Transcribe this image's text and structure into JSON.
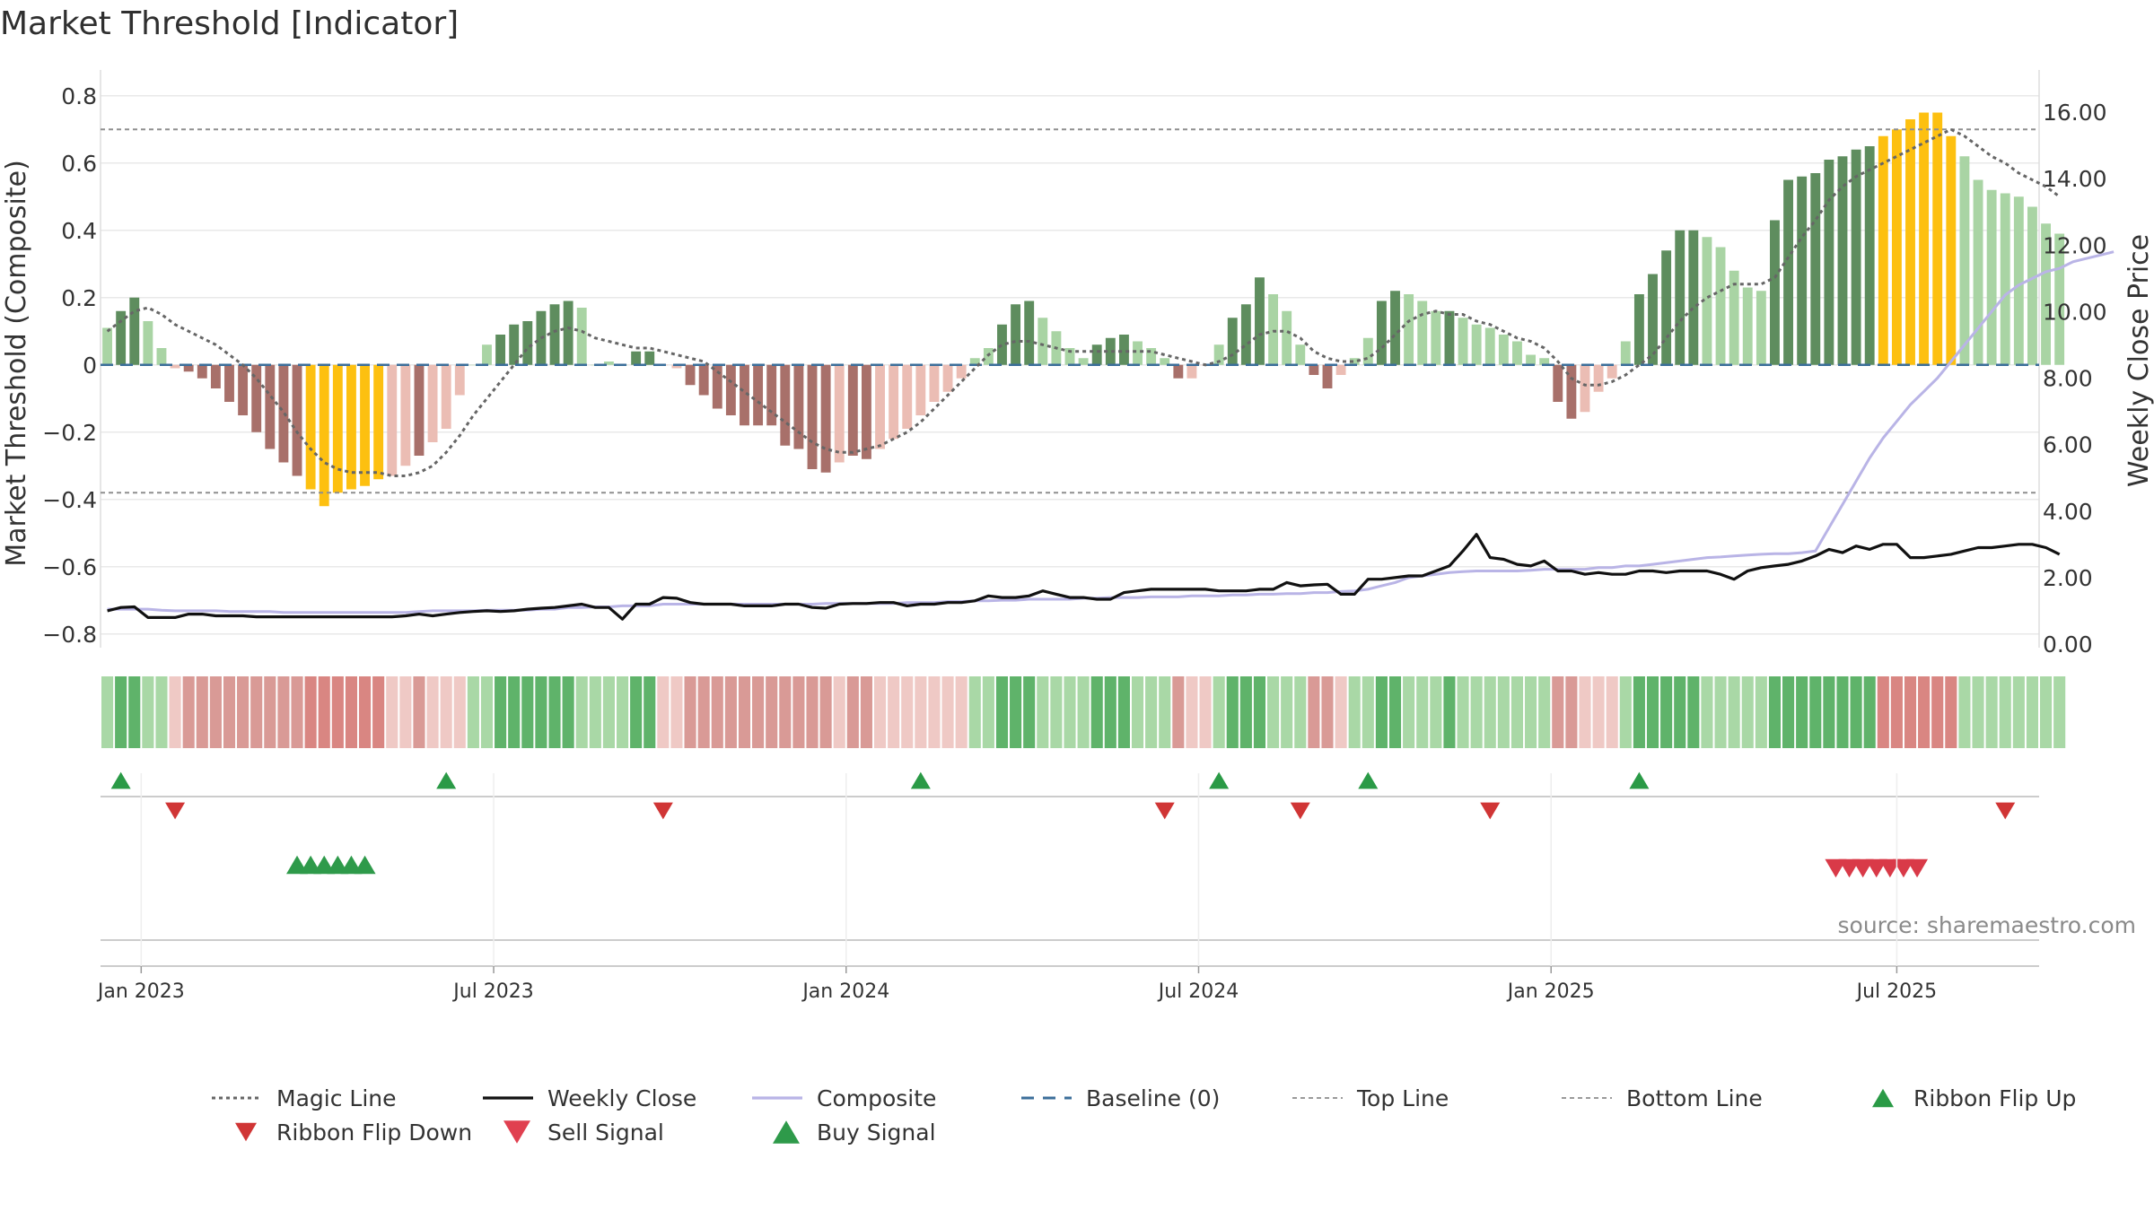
{
  "chart_data": {
    "type": "bar",
    "title": "Market Threshold [Indicator]",
    "ylabel_left": "Market Threshold (Composite)",
    "ylabel_right": "Weekly Close Price",
    "ylim_left": [
      -0.83,
      0.85
    ],
    "ylim_right": [
      0,
      17
    ],
    "yticks_left": [
      -0.8,
      -0.6,
      -0.4,
      -0.2,
      0,
      0.2,
      0.4,
      0.6,
      0.8
    ],
    "ytick_labels_left": [
      "−0.8",
      "−0.6",
      "−0.4",
      "−0.2",
      "0",
      "0.2",
      "0.4",
      "0.6",
      "0.8"
    ],
    "yticks_right": [
      0,
      2,
      4,
      6,
      8,
      10,
      12,
      14,
      16
    ],
    "ytick_labels_right": [
      "0.00",
      "2.00",
      "4.00",
      "6.00",
      "8.00",
      "10.00",
      "12.00",
      "14.00",
      "16.00"
    ],
    "x_ticks": [
      {
        "label": "Jan 2023",
        "week": 3
      },
      {
        "label": "Jul 2023",
        "week": 29
      },
      {
        "label": "Jan 2024",
        "week": 55
      },
      {
        "label": "Jul 2024",
        "week": 81
      },
      {
        "label": "Jan 2025",
        "week": 107
      },
      {
        "label": "Jul 2025",
        "week": 132.5
      }
    ],
    "weeks": 143,
    "top_line": 0.7,
    "bottom_line": -0.38,
    "composite_bars": [
      0.11,
      0.16,
      0.2,
      0.13,
      0.05,
      -0.01,
      -0.02,
      -0.04,
      -0.07,
      -0.11,
      -0.15,
      -0.2,
      -0.25,
      -0.29,
      -0.33,
      -0.37,
      -0.42,
      -0.38,
      -0.37,
      -0.36,
      -0.34,
      -0.33,
      -0.3,
      -0.27,
      -0.23,
      -0.19,
      -0.09,
      0.0,
      0.06,
      0.09,
      0.12,
      0.13,
      0.16,
      0.18,
      0.19,
      0.17,
      0.0,
      0.01,
      0.0,
      0.04,
      0.04,
      0.0,
      -0.01,
      -0.06,
      -0.09,
      -0.13,
      -0.15,
      -0.18,
      -0.18,
      -0.18,
      -0.24,
      -0.25,
      -0.31,
      -0.32,
      -0.29,
      -0.27,
      -0.28,
      -0.25,
      -0.22,
      -0.19,
      -0.15,
      -0.11,
      -0.08,
      -0.04,
      0.02,
      0.05,
      0.12,
      0.18,
      0.19,
      0.14,
      0.1,
      0.05,
      0.02,
      0.06,
      0.08,
      0.09,
      0.07,
      0.05,
      0.02,
      -0.04,
      -0.04,
      0.0,
      0.06,
      0.14,
      0.18,
      0.26,
      0.21,
      0.16,
      0.06,
      -0.03,
      -0.07,
      -0.03,
      0.02,
      0.08,
      0.19,
      0.22,
      0.21,
      0.19,
      0.16,
      0.16,
      0.14,
      0.12,
      0.11,
      0.09,
      0.07,
      0.03,
      0.02,
      -0.11,
      -0.16,
      -0.14,
      -0.08,
      -0.04,
      0.07,
      0.21,
      0.27,
      0.34,
      0.4,
      0.4,
      0.38,
      0.35,
      0.28,
      0.23,
      0.22,
      0.43,
      0.55,
      0.56,
      0.57,
      0.61,
      0.62,
      0.64,
      0.65,
      0.68,
      0.7,
      0.73,
      0.75,
      0.75,
      0.68,
      0.62,
      0.55,
      0.52,
      0.51,
      0.5,
      0.47,
      0.42,
      0.39
    ],
    "bar_categories": [
      "lg",
      "dg",
      "dg",
      "lg",
      "lg",
      "lr",
      "dr",
      "dr",
      "dr",
      "dr",
      "dr",
      "dr",
      "dr",
      "dr",
      "dr",
      "y",
      "y",
      "y",
      "y",
      "y",
      "y",
      "lr",
      "lr",
      "dr",
      "lr",
      "lr",
      "lr",
      "lg",
      "lg",
      "dg",
      "dg",
      "dg",
      "dg",
      "dg",
      "dg",
      "lg",
      "lg",
      "lg",
      "lg",
      "dg",
      "dg",
      "lr",
      "lr",
      "dr",
      "dr",
      "dr",
      "dr",
      "dr",
      "dr",
      "dr",
      "dr",
      "dr",
      "dr",
      "dr",
      "lr",
      "dr",
      "dr",
      "lr",
      "lr",
      "lr",
      "lr",
      "lr",
      "lr",
      "lr",
      "lg",
      "lg",
      "dg",
      "dg",
      "dg",
      "lg",
      "lg",
      "lg",
      "lg",
      "dg",
      "dg",
      "dg",
      "lg",
      "lg",
      "lg",
      "dr",
      "lr",
      "lr",
      "lg",
      "dg",
      "dg",
      "dg",
      "lg",
      "lg",
      "lg",
      "dr",
      "dr",
      "lr",
      "lg",
      "lg",
      "dg",
      "dg",
      "lg",
      "lg",
      "lg",
      "dg",
      "lg",
      "lg",
      "lg",
      "lg",
      "lg",
      "lg",
      "lg",
      "dr",
      "dr",
      "lr",
      "lr",
      "lr",
      "lg",
      "dg",
      "dg",
      "dg",
      "dg",
      "dg",
      "lg",
      "lg",
      "lg",
      "lg",
      "lg",
      "dg",
      "dg",
      "dg",
      "dg",
      "dg",
      "dg",
      "dg",
      "dg",
      "y",
      "y",
      "y",
      "y",
      "y",
      "y",
      "lg",
      "lg",
      "lg",
      "lg",
      "lg",
      "lg",
      "lg",
      "lg"
    ],
    "magic_line": [
      0.1,
      0.13,
      0.16,
      0.17,
      0.15,
      0.12,
      0.1,
      0.08,
      0.06,
      0.03,
      0.0,
      -0.04,
      -0.09,
      -0.14,
      -0.2,
      -0.25,
      -0.29,
      -0.31,
      -0.32,
      -0.32,
      -0.32,
      -0.33,
      -0.33,
      -0.32,
      -0.3,
      -0.26,
      -0.21,
      -0.15,
      -0.1,
      -0.05,
      0.0,
      0.05,
      0.08,
      0.1,
      0.11,
      0.1,
      0.08,
      0.07,
      0.06,
      0.05,
      0.05,
      0.04,
      0.03,
      0.02,
      0.01,
      -0.02,
      -0.05,
      -0.08,
      -0.11,
      -0.14,
      -0.17,
      -0.2,
      -0.23,
      -0.25,
      -0.26,
      -0.26,
      -0.25,
      -0.24,
      -0.22,
      -0.2,
      -0.17,
      -0.13,
      -0.09,
      -0.05,
      -0.01,
      0.03,
      0.06,
      0.07,
      0.07,
      0.06,
      0.05,
      0.04,
      0.04,
      0.04,
      0.04,
      0.04,
      0.04,
      0.04,
      0.03,
      0.02,
      0.01,
      0.0,
      0.01,
      0.03,
      0.06,
      0.09,
      0.1,
      0.1,
      0.08,
      0.04,
      0.02,
      0.01,
      0.01,
      0.02,
      0.05,
      0.09,
      0.13,
      0.15,
      0.16,
      0.15,
      0.15,
      0.13,
      0.12,
      0.1,
      0.08,
      0.07,
      0.05,
      0.01,
      -0.04,
      -0.06,
      -0.06,
      -0.05,
      -0.03,
      -0.0,
      0.03,
      0.08,
      0.13,
      0.17,
      0.2,
      0.22,
      0.24,
      0.24,
      0.24,
      0.26,
      0.32,
      0.38,
      0.43,
      0.49,
      0.53,
      0.56,
      0.58,
      0.6,
      0.62,
      0.64,
      0.66,
      0.68,
      0.7,
      0.68,
      0.65,
      0.62,
      0.6,
      0.57,
      0.55,
      0.53,
      0.5
    ],
    "weekly_close": [
      1.0,
      1.1,
      1.12,
      0.8,
      0.8,
      0.8,
      0.9,
      0.9,
      0.85,
      0.85,
      0.85,
      0.82,
      0.82,
      0.82,
      0.82,
      0.82,
      0.82,
      0.82,
      0.82,
      0.82,
      0.82,
      0.82,
      0.85,
      0.9,
      0.85,
      0.9,
      0.95,
      0.98,
      1.0,
      0.98,
      1.0,
      1.05,
      1.08,
      1.1,
      1.15,
      1.2,
      1.1,
      1.1,
      0.75,
      1.2,
      1.2,
      1.4,
      1.38,
      1.25,
      1.2,
      1.2,
      1.2,
      1.15,
      1.15,
      1.15,
      1.2,
      1.2,
      1.1,
      1.08,
      1.2,
      1.22,
      1.22,
      1.25,
      1.25,
      1.15,
      1.2,
      1.2,
      1.25,
      1.25,
      1.3,
      1.45,
      1.4,
      1.4,
      1.45,
      1.6,
      1.5,
      1.4,
      1.4,
      1.35,
      1.35,
      1.55,
      1.6,
      1.65,
      1.65,
      1.65,
      1.65,
      1.65,
      1.6,
      1.6,
      1.6,
      1.65,
      1.65,
      1.85,
      1.75,
      1.78,
      1.8,
      1.5,
      1.5,
      1.95,
      1.95,
      2.0,
      2.05,
      2.05,
      2.2,
      2.35,
      2.8,
      3.3,
      2.6,
      2.55,
      2.4,
      2.35,
      2.5,
      2.2,
      2.2,
      2.1,
      2.15,
      2.1,
      2.1,
      2.2,
      2.2,
      2.15,
      2.2,
      2.2,
      2.2,
      2.1,
      1.95,
      2.2,
      2.3,
      2.35,
      2.4,
      2.5,
      2.65,
      2.85,
      2.75,
      2.95,
      2.85,
      3.0,
      3.0,
      2.6,
      2.6,
      2.65,
      2.7,
      2.8,
      2.9,
      2.9,
      2.95,
      3.0,
      3.0,
      2.9,
      2.7
    ],
    "composite_line": [
      1.05,
      1.05,
      1.05,
      1.05,
      1.02,
      1.0,
      1.0,
      1.0,
      1.0,
      0.98,
      0.98,
      0.98,
      0.98,
      0.95,
      0.95,
      0.95,
      0.95,
      0.95,
      0.95,
      0.95,
      0.95,
      0.95,
      0.95,
      0.98,
      1.0,
      1.0,
      1.0,
      1.0,
      1.02,
      1.02,
      1.02,
      1.02,
      1.05,
      1.05,
      1.1,
      1.1,
      1.12,
      1.12,
      1.15,
      1.15,
      1.15,
      1.2,
      1.2,
      1.2,
      1.2,
      1.2,
      1.2,
      1.2,
      1.2,
      1.2,
      1.2,
      1.2,
      1.2,
      1.22,
      1.22,
      1.22,
      1.22,
      1.22,
      1.22,
      1.25,
      1.25,
      1.25,
      1.28,
      1.28,
      1.3,
      1.3,
      1.32,
      1.32,
      1.35,
      1.35,
      1.35,
      1.35,
      1.38,
      1.38,
      1.4,
      1.4,
      1.4,
      1.42,
      1.42,
      1.42,
      1.45,
      1.45,
      1.45,
      1.48,
      1.48,
      1.5,
      1.5,
      1.52,
      1.52,
      1.55,
      1.55,
      1.58,
      1.6,
      1.65,
      1.75,
      1.85,
      2.0,
      2.05,
      2.1,
      2.15,
      2.18,
      2.2,
      2.2,
      2.2,
      2.2,
      2.22,
      2.25,
      2.25,
      2.25,
      2.25,
      2.3,
      2.3,
      2.35,
      2.35,
      2.4,
      2.45,
      2.5,
      2.55,
      2.6,
      2.62,
      2.65,
      2.68,
      2.7,
      2.72,
      2.72,
      2.75,
      2.8,
      3.5,
      4.2,
      4.9,
      5.6,
      6.2,
      6.7,
      7.2,
      7.6,
      8.0,
      8.5,
      9.0,
      9.5,
      10.0,
      10.5,
      10.8,
      11.0,
      11.2,
      11.3,
      11.5,
      11.6,
      11.7,
      11.8
    ],
    "buy_signals_weeks": [
      14,
      15,
      16,
      17,
      18,
      19
    ],
    "sell_signals_weeks": [
      127.5,
      128.5,
      129.5,
      130.5,
      131.5,
      132.5,
      133.5
    ],
    "ribbon_flip_up_weeks": [
      1,
      25,
      60,
      82,
      93,
      113
    ],
    "ribbon_flip_down_weeks": [
      5,
      41,
      78,
      88,
      102,
      140
    ],
    "legend": [
      {
        "label": "Magic Line",
        "style": "dotted-line",
        "color": "#666666"
      },
      {
        "label": "Weekly Close",
        "style": "solid-line",
        "color": "#111111"
      },
      {
        "label": "Composite",
        "style": "solid-line",
        "color": "#b9b4e6"
      },
      {
        "label": "Baseline (0)",
        "style": "dashed-line",
        "color": "#3b6e9a"
      },
      {
        "label": "Top Line",
        "style": "dashed-line",
        "color": "#9a9a9a"
      },
      {
        "label": "Bottom Line",
        "style": "dashed-line",
        "color": "#9a9a9a"
      },
      {
        "label": "Ribbon Flip Up",
        "style": "triangle-up",
        "color": "#2a9a46"
      },
      {
        "label": "Ribbon Flip Down",
        "style": "triangle-down",
        "color": "#d03535"
      },
      {
        "label": "Sell Signal",
        "style": "triangle-down",
        "color": "#e04050"
      },
      {
        "label": "Buy Signal",
        "style": "triangle-up",
        "color": "#2e9a4a"
      }
    ],
    "colors": {
      "dark_green": "#5e8d5e",
      "light_green": "#a9d4a4",
      "dark_red": "#a8706a",
      "light_red": "#ebbdb4",
      "yellow": "#fdc010",
      "magic": "#666666",
      "close": "#111111",
      "composite": "#b9b4e6",
      "baseline": "#3b6e9a",
      "threshold": "#8f8f8f",
      "grid": "#e9e9e9",
      "buy": "#2a9a46",
      "sell": "#d93a48"
    }
  },
  "source": "source: sharemaestro.com"
}
